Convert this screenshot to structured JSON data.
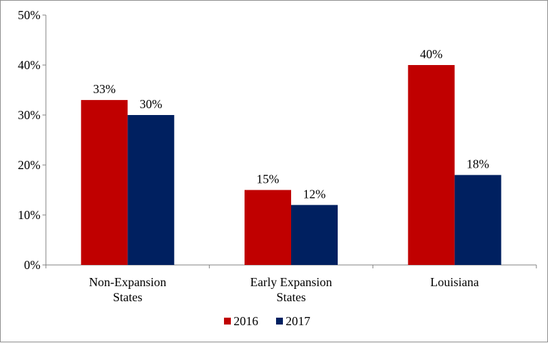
{
  "chart_data": {
    "type": "bar",
    "categories": [
      [
        "Non-Expansion",
        "States"
      ],
      [
        "Early Expansion",
        "States"
      ],
      [
        "Louisiana"
      ]
    ],
    "series": [
      {
        "name": "2016",
        "values": [
          33,
          15,
          40
        ],
        "labels": [
          "33%",
          "15%",
          "40%"
        ],
        "color": "#c00000"
      },
      {
        "name": "2017",
        "values": [
          30,
          12,
          18
        ],
        "labels": [
          "30%",
          "12%",
          "18%"
        ],
        "color": "#002060"
      }
    ],
    "ylim": [
      0,
      50
    ],
    "yticks": [
      0,
      10,
      20,
      30,
      40,
      50
    ],
    "ytick_labels": [
      "0%",
      "10%",
      "20%",
      "30%",
      "40%",
      "50%"
    ],
    "xlabel": "",
    "ylabel": "",
    "title": "",
    "grid": false,
    "legend": "bottom-center"
  }
}
